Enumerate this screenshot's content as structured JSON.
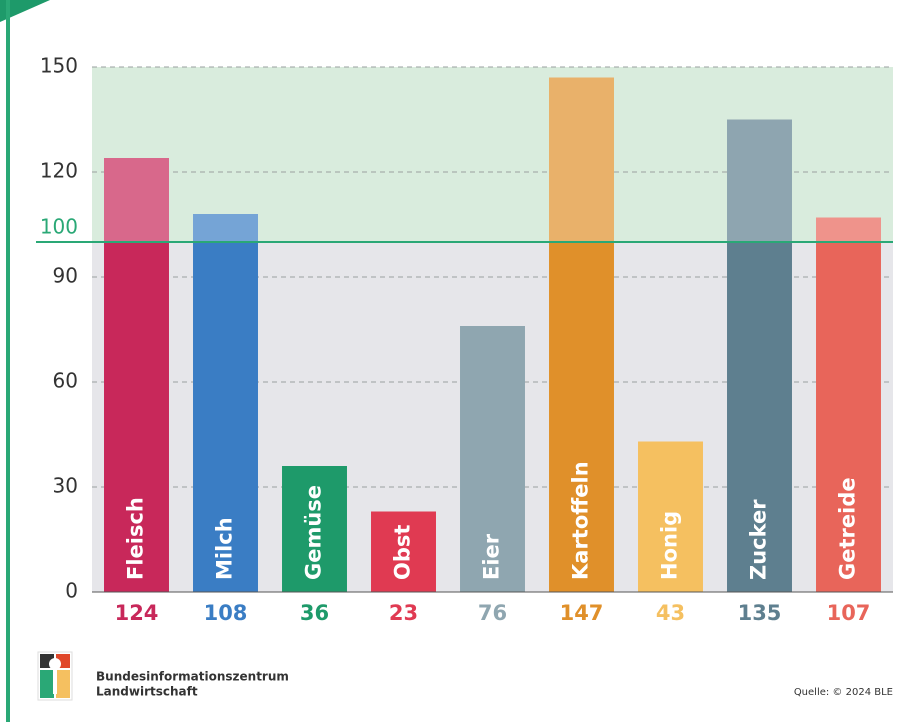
{
  "chart_data": {
    "type": "bar",
    "categories": [
      "Fleisch",
      "Milch",
      "Gemüse",
      "Obst",
      "Eier",
      "Kartoffeln",
      "Honig",
      "Zucker",
      "Getreide"
    ],
    "values": [
      124,
      108,
      36,
      23,
      76,
      147,
      43,
      135,
      107
    ],
    "colors": [
      "#c8285a",
      "#3a7dc4",
      "#1e9a6a",
      "#e03a52",
      "#8fa6b0",
      "#e0902a",
      "#f5c060",
      "#5e7f8f",
      "#e8655a"
    ],
    "ylim": [
      0,
      150
    ],
    "yticks": [
      0,
      30,
      60,
      90,
      120,
      150
    ],
    "grid": true,
    "reference_line": 100,
    "reference_color": "#2aa876"
  },
  "footer": {
    "org": [
      "Bundesinformationszentrum",
      "Landwirtschaft"
    ],
    "source": "Quelle: © 2024 BLE"
  }
}
